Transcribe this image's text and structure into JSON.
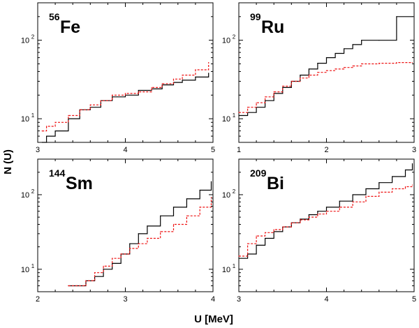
{
  "figure": {
    "xlabel": "U [MeV]",
    "ylabel": "N (U)",
    "colors": {
      "solid": "#000000",
      "dashed": "#ee1111"
    }
  },
  "chart_data": [
    {
      "type": "line",
      "title": {
        "super": "56",
        "main": "Fe"
      },
      "yscale": "log",
      "xlim": [
        3,
        5
      ],
      "ylim": [
        5,
        300
      ],
      "xticks": [
        "3",
        "4",
        "5"
      ],
      "yticks": [
        {
          "value": 10,
          "base": "10",
          "exp": "1"
        },
        {
          "value": 100,
          "base": "10",
          "exp": "2"
        }
      ],
      "grid": false,
      "series": [
        {
          "style": "solid",
          "x": [
            3.05,
            3.1,
            3.2,
            3.35,
            3.48,
            3.6,
            3.72,
            3.85,
            4.0,
            4.15,
            4.3,
            4.42,
            4.55,
            4.65,
            4.8,
            4.95
          ],
          "y": [
            5,
            6,
            7,
            10,
            13,
            14,
            17,
            19,
            20,
            23,
            24,
            27,
            29,
            31,
            34,
            38
          ]
        },
        {
          "style": "dashed",
          "x": [
            3.05,
            3.1,
            3.2,
            3.35,
            3.48,
            3.6,
            3.72,
            3.85,
            4.0,
            4.15,
            4.3,
            4.42,
            4.55,
            4.65,
            4.8,
            4.95
          ],
          "y": [
            7,
            8,
            9,
            11,
            13,
            15,
            17,
            20,
            21,
            22,
            25,
            28,
            32,
            36,
            42,
            52
          ]
        }
      ]
    },
    {
      "type": "line",
      "title": {
        "super": "99",
        "main": "Ru"
      },
      "yscale": "log",
      "xlim": [
        1,
        3
      ],
      "ylim": [
        5,
        300
      ],
      "xticks": [
        "1",
        "2",
        "3"
      ],
      "yticks": [
        {
          "value": 10,
          "base": "10",
          "exp": "1"
        },
        {
          "value": 100,
          "base": "10",
          "exp": "2"
        }
      ],
      "grid": false,
      "series": [
        {
          "style": "solid",
          "x": [
            1.0,
            1.1,
            1.2,
            1.3,
            1.4,
            1.5,
            1.6,
            1.7,
            1.8,
            1.9,
            2.0,
            2.1,
            2.2,
            2.3,
            2.4,
            2.6,
            2.8,
            2.98
          ],
          "y": [
            11,
            12,
            14,
            17,
            21,
            25,
            30,
            36,
            43,
            51,
            60,
            68,
            78,
            88,
            100,
            100,
            200,
            200
          ]
        },
        {
          "style": "dashed",
          "x": [
            1.0,
            1.1,
            1.2,
            1.3,
            1.4,
            1.5,
            1.6,
            1.7,
            1.8,
            1.9,
            2.0,
            2.1,
            2.2,
            2.3,
            2.4,
            2.6,
            2.8,
            2.98
          ],
          "y": [
            12,
            14,
            16,
            19,
            22,
            26,
            30,
            33,
            36,
            39,
            41,
            43,
            45,
            47,
            50,
            51,
            52,
            52
          ]
        }
      ]
    },
    {
      "type": "line",
      "title": {
        "super": "144",
        "main": "Sm"
      },
      "yscale": "log",
      "xlim": [
        2,
        4
      ],
      "ylim": [
        5,
        300
      ],
      "xticks": [
        "2",
        "3",
        "4"
      ],
      "yticks": [
        {
          "value": 10,
          "base": "10",
          "exp": "1"
        },
        {
          "value": 100,
          "base": "10",
          "exp": "2"
        }
      ],
      "grid": false,
      "series": [
        {
          "style": "solid",
          "x": [
            2.35,
            2.45,
            2.55,
            2.65,
            2.75,
            2.85,
            2.95,
            3.05,
            3.15,
            3.25,
            3.4,
            3.55,
            3.7,
            3.85,
            3.98
          ],
          "y": [
            6,
            6,
            7,
            8,
            10,
            12,
            16,
            22,
            30,
            38,
            52,
            68,
            88,
            115,
            150
          ]
        },
        {
          "style": "dashed",
          "x": [
            2.35,
            2.45,
            2.55,
            2.65,
            2.75,
            2.85,
            2.95,
            3.05,
            3.15,
            3.25,
            3.4,
            3.55,
            3.7,
            3.85,
            3.98
          ],
          "y": [
            6,
            6,
            7,
            9,
            11,
            14,
            16,
            19,
            22,
            26,
            32,
            40,
            52,
            68,
            92
          ]
        }
      ]
    },
    {
      "type": "line",
      "title": {
        "super": "209",
        "main": "Bi"
      },
      "yscale": "log",
      "xlim": [
        3,
        5
      ],
      "ylim": [
        5,
        300
      ],
      "xticks": [
        "3",
        "4",
        "5"
      ],
      "yticks": [
        {
          "value": 10,
          "base": "10",
          "exp": "1"
        },
        {
          "value": 100,
          "base": "10",
          "exp": "2"
        }
      ],
      "grid": false,
      "series": [
        {
          "style": "solid",
          "x": [
            3.0,
            3.1,
            3.2,
            3.3,
            3.4,
            3.5,
            3.6,
            3.7,
            3.8,
            3.9,
            4.0,
            4.15,
            4.3,
            4.45,
            4.6,
            4.75,
            4.9,
            4.98
          ],
          "y": [
            14,
            16,
            21,
            26,
            32,
            37,
            42,
            47,
            54,
            60,
            68,
            82,
            100,
            120,
            145,
            175,
            215,
            260
          ]
        },
        {
          "style": "dashed",
          "x": [
            3.0,
            3.1,
            3.2,
            3.3,
            3.4,
            3.5,
            3.6,
            3.7,
            3.8,
            3.9,
            4.0,
            4.15,
            4.3,
            4.45,
            4.6,
            4.75,
            4.9,
            4.98
          ],
          "y": [
            15,
            22,
            28,
            31,
            34,
            37,
            42,
            46,
            50,
            55,
            60,
            68,
            80,
            95,
            108,
            120,
            128,
            135
          ]
        }
      ]
    }
  ]
}
